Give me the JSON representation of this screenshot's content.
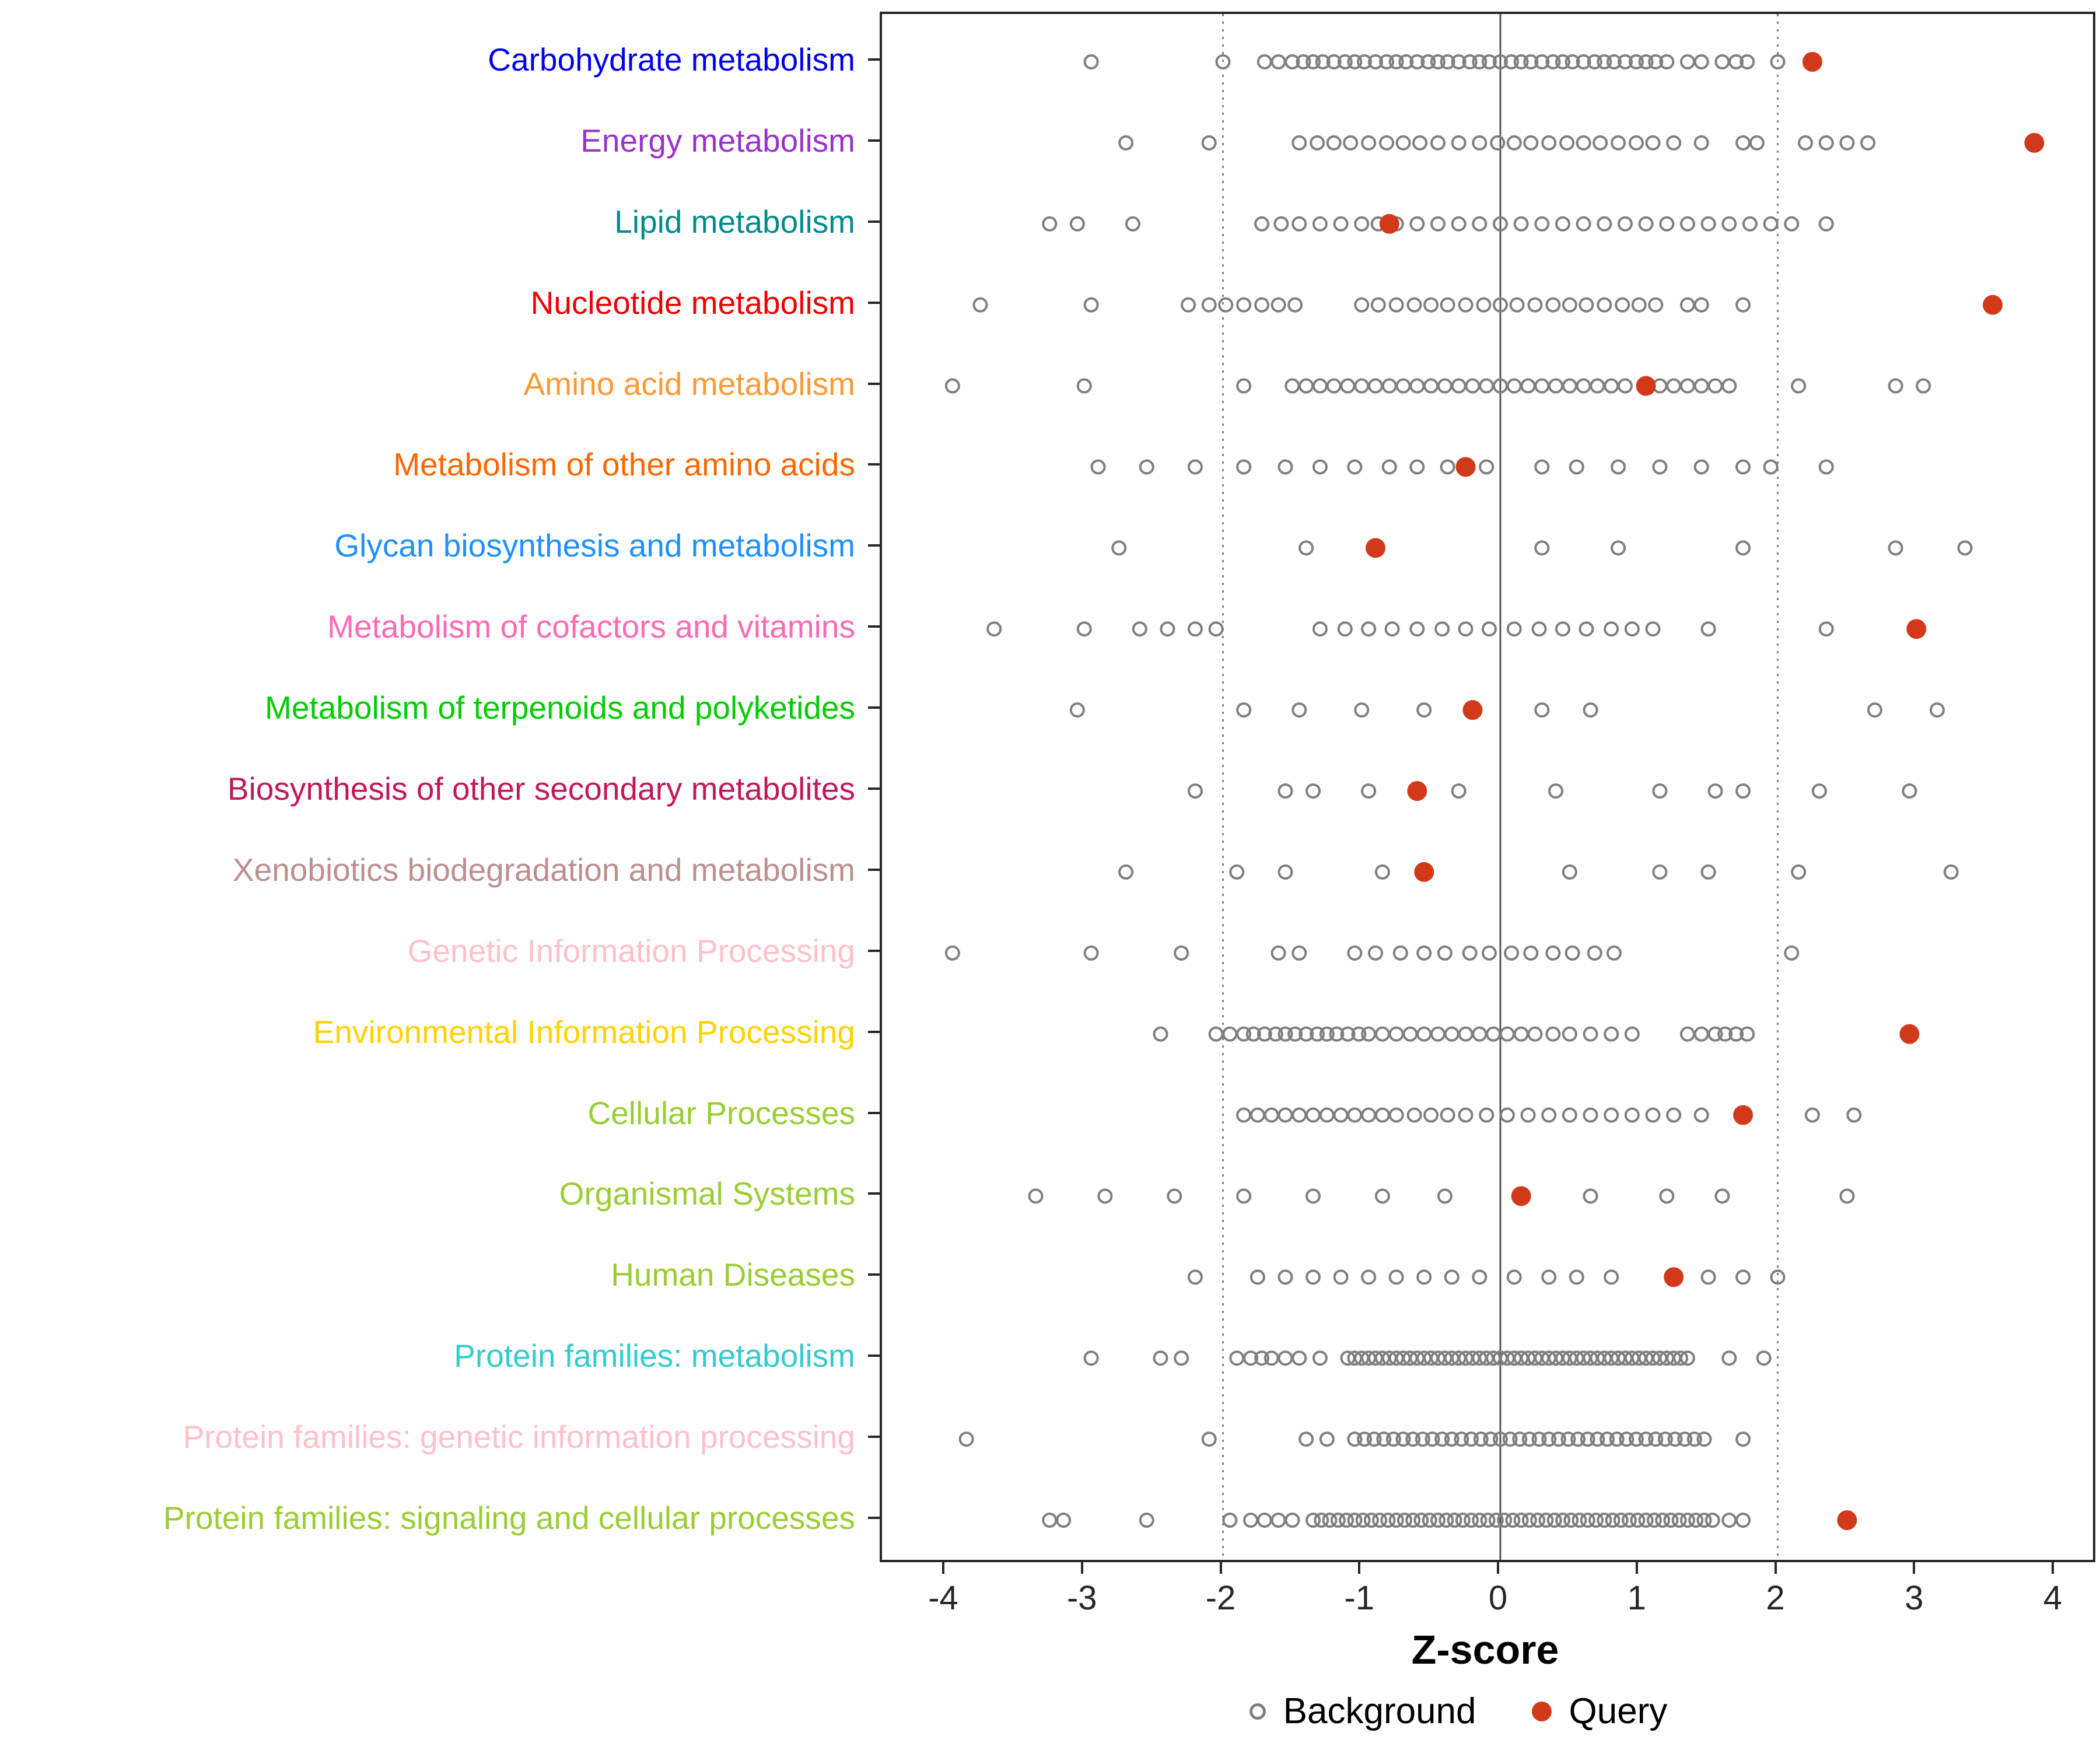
{
  "figure": {
    "colors": {
      "background_point": "#7F7F7F",
      "query_point": "#D2391B",
      "axis_text": "#262626",
      "panel_border": "#262626",
      "ref_line_solid": "#555555",
      "ref_line_dotted": "#808080"
    }
  },
  "chart_data": {
    "type": "scatter",
    "title": "",
    "xlabel": "Z-score",
    "ylabel": "",
    "x_min": -4,
    "x_max": 4,
    "x_ticks": [
      -4,
      -3,
      -2,
      -1,
      0,
      1,
      2,
      3,
      4
    ],
    "reference_lines": {
      "solid": [
        0
      ],
      "dotted": [
        -2,
        2
      ]
    },
    "legend_background": "Background",
    "legend_query": "Query",
    "rows": [
      {
        "label": "Carbohydrate metabolism",
        "color": "#0000EE",
        "query": 2.25,
        "background": [
          -2.95,
          -2.0,
          -1.7,
          -1.6,
          -1.5,
          -1.42,
          -1.35,
          -1.28,
          -1.2,
          -1.12,
          -1.05,
          -0.98,
          -0.9,
          -0.82,
          -0.75,
          -0.68,
          -0.6,
          -0.52,
          -0.45,
          -0.38,
          -0.3,
          -0.22,
          -0.15,
          -0.08,
          0.0,
          0.08,
          0.15,
          0.22,
          0.3,
          0.38,
          0.45,
          0.52,
          0.6,
          0.68,
          0.75,
          0.82,
          0.9,
          0.98,
          1.05,
          1.12,
          1.2,
          1.35,
          1.45,
          1.6,
          1.7,
          1.78,
          2.0
        ]
      },
      {
        "label": "Energy metabolism",
        "color": "#9932CC",
        "query": 3.85,
        "background": [
          -2.7,
          -2.1,
          -1.45,
          -1.32,
          -1.2,
          -1.08,
          -0.95,
          -0.82,
          -0.7,
          -0.58,
          -0.45,
          -0.3,
          -0.15,
          -0.02,
          0.1,
          0.22,
          0.35,
          0.48,
          0.6,
          0.72,
          0.85,
          0.98,
          1.1,
          1.25,
          1.45,
          1.75,
          1.85,
          2.2,
          2.35,
          2.5,
          2.65
        ]
      },
      {
        "label": "Lipid metabolism",
        "color": "#008B8B",
        "query": -0.8,
        "background": [
          -3.25,
          -3.05,
          -2.65,
          -1.72,
          -1.58,
          -1.45,
          -1.3,
          -1.15,
          -1.0,
          -0.88,
          -0.75,
          -0.6,
          -0.45,
          -0.3,
          -0.15,
          0.0,
          0.15,
          0.3,
          0.45,
          0.6,
          0.75,
          0.9,
          1.05,
          1.2,
          1.35,
          1.5,
          1.65,
          1.8,
          1.95,
          2.1,
          2.35
        ]
      },
      {
        "label": "Nucleotide metabolism",
        "color": "#EE0000",
        "query": 3.55,
        "background": [
          -3.75,
          -2.95,
          -2.25,
          -2.1,
          -1.98,
          -1.85,
          -1.72,
          -1.6,
          -1.48,
          -1.0,
          -0.88,
          -0.75,
          -0.62,
          -0.5,
          -0.38,
          -0.25,
          -0.12,
          0.0,
          0.12,
          0.25,
          0.38,
          0.5,
          0.62,
          0.75,
          0.88,
          1.0,
          1.12,
          1.35,
          1.45,
          1.75
        ]
      },
      {
        "label": "Amino acid metabolism",
        "color": "#FF9933",
        "query": 1.05,
        "background": [
          -3.95,
          -3.0,
          -1.85,
          -1.5,
          -1.4,
          -1.3,
          -1.2,
          -1.1,
          -1.0,
          -0.9,
          -0.8,
          -0.7,
          -0.6,
          -0.5,
          -0.4,
          -0.3,
          -0.2,
          -0.1,
          0.0,
          0.1,
          0.2,
          0.3,
          0.4,
          0.5,
          0.6,
          0.7,
          0.8,
          0.9,
          1.15,
          1.25,
          1.35,
          1.45,
          1.55,
          1.65,
          2.15,
          2.85,
          3.05
        ]
      },
      {
        "label": "Metabolism of other amino acids",
        "color": "#FF6600",
        "query": -0.25,
        "background": [
          -2.9,
          -2.55,
          -2.2,
          -1.85,
          -1.55,
          -1.3,
          -1.05,
          -0.8,
          -0.6,
          -0.38,
          -0.1,
          0.3,
          0.55,
          0.85,
          1.15,
          1.45,
          1.75,
          1.95,
          2.35
        ]
      },
      {
        "label": "Glycan biosynthesis and metabolism",
        "color": "#1E90FF",
        "query": -0.9,
        "background": [
          -2.75,
          -1.4,
          0.3,
          0.85,
          1.75,
          2.85,
          3.35
        ]
      },
      {
        "label": "Metabolism of cofactors and vitamins",
        "color": "#FF69B4",
        "query": 3.0,
        "background": [
          -3.65,
          -3.0,
          -2.6,
          -2.4,
          -2.2,
          -2.05,
          -1.3,
          -1.12,
          -0.95,
          -0.78,
          -0.6,
          -0.42,
          -0.25,
          -0.08,
          0.1,
          0.28,
          0.45,
          0.62,
          0.8,
          0.95,
          1.1,
          1.5,
          2.35
        ]
      },
      {
        "label": "Metabolism of terpenoids and polyketides",
        "color": "#00CD00",
        "query": -0.2,
        "background": [
          -3.05,
          -1.85,
          -1.45,
          -1.0,
          -0.55,
          0.3,
          0.65,
          2.7,
          3.15
        ]
      },
      {
        "label": "Biosynthesis of other secondary metabolites",
        "color": "#C2185B",
        "query": -0.6,
        "background": [
          -2.2,
          -1.55,
          -1.35,
          -0.95,
          -0.3,
          0.4,
          1.15,
          1.55,
          1.75,
          2.3,
          2.95
        ]
      },
      {
        "label": "Xenobiotics biodegradation and metabolism",
        "color": "#BC8F8F",
        "query": -0.55,
        "background": [
          -2.7,
          -1.9,
          -1.55,
          -0.85,
          0.5,
          1.15,
          1.5,
          2.15,
          3.25
        ]
      },
      {
        "label": "Genetic Information Processing",
        "color": "#FFC0CB",
        "query": null,
        "background": [
          -3.95,
          -2.95,
          -2.3,
          -1.6,
          -1.45,
          -1.05,
          -0.9,
          -0.72,
          -0.55,
          -0.4,
          -0.22,
          -0.08,
          0.08,
          0.22,
          0.38,
          0.52,
          0.68,
          0.82,
          2.1
        ]
      },
      {
        "label": "Environmental Information Processing",
        "color": "#FFD200",
        "query": 2.95,
        "background": [
          -2.45,
          -2.05,
          -1.95,
          -1.85,
          -1.78,
          -1.7,
          -1.62,
          -1.55,
          -1.48,
          -1.4,
          -1.32,
          -1.25,
          -1.18,
          -1.1,
          -1.02,
          -0.95,
          -0.85,
          -0.75,
          -0.65,
          -0.55,
          -0.45,
          -0.35,
          -0.25,
          -0.15,
          -0.05,
          0.05,
          0.15,
          0.25,
          0.38,
          0.5,
          0.65,
          0.8,
          0.95,
          1.35,
          1.45,
          1.55,
          1.62,
          1.7,
          1.78
        ]
      },
      {
        "label": "Cellular Processes",
        "color": "#9ACD32",
        "query": 1.75,
        "background": [
          -1.85,
          -1.75,
          -1.65,
          -1.55,
          -1.45,
          -1.35,
          -1.25,
          -1.15,
          -1.05,
          -0.95,
          -0.85,
          -0.75,
          -0.62,
          -0.5,
          -0.38,
          -0.25,
          -0.1,
          0.05,
          0.2,
          0.35,
          0.5,
          0.65,
          0.8,
          0.95,
          1.1,
          1.25,
          1.45,
          2.25,
          2.55
        ]
      },
      {
        "label": "Organismal Systems",
        "color": "#9ACD32",
        "query": 0.15,
        "background": [
          -3.35,
          -2.85,
          -2.35,
          -1.85,
          -1.35,
          -0.85,
          -0.4,
          0.65,
          1.2,
          1.6,
          2.5
        ]
      },
      {
        "label": "Human Diseases",
        "color": "#9ACD32",
        "query": 1.25,
        "background": [
          -2.2,
          -1.75,
          -1.55,
          -1.35,
          -1.15,
          -0.95,
          -0.75,
          -0.55,
          -0.35,
          -0.15,
          0.1,
          0.35,
          0.55,
          0.8,
          1.5,
          1.75,
          2.0
        ]
      },
      {
        "label": "Protein families: metabolism",
        "color": "#33CCCC",
        "query": null,
        "background": [
          -2.95,
          -2.45,
          -2.3,
          -1.9,
          -1.8,
          -1.72,
          -1.65,
          -1.55,
          -1.45,
          -1.3,
          -1.1,
          -1.05,
          -1.0,
          -0.95,
          -0.9,
          -0.85,
          -0.8,
          -0.75,
          -0.7,
          -0.65,
          -0.6,
          -0.55,
          -0.5,
          -0.45,
          -0.4,
          -0.35,
          -0.3,
          -0.25,
          -0.2,
          -0.15,
          -0.1,
          -0.05,
          0.0,
          0.05,
          0.1,
          0.15,
          0.2,
          0.25,
          0.3,
          0.35,
          0.4,
          0.45,
          0.5,
          0.55,
          0.6,
          0.65,
          0.7,
          0.75,
          0.8,
          0.85,
          0.9,
          0.95,
          1.0,
          1.05,
          1.1,
          1.15,
          1.2,
          1.25,
          1.3,
          1.35,
          1.65,
          1.9
        ]
      },
      {
        "label": "Protein families: genetic information processing",
        "color": "#FFC0CB",
        "query": null,
        "background": [
          -3.85,
          -2.1,
          -1.4,
          -1.25,
          -1.05,
          -0.98,
          -0.91,
          -0.84,
          -0.77,
          -0.7,
          -0.63,
          -0.56,
          -0.49,
          -0.42,
          -0.35,
          -0.28,
          -0.21,
          -0.14,
          -0.07,
          0.0,
          0.07,
          0.14,
          0.21,
          0.28,
          0.35,
          0.42,
          0.49,
          0.56,
          0.63,
          0.7,
          0.77,
          0.84,
          0.91,
          0.98,
          1.05,
          1.12,
          1.19,
          1.26,
          1.33,
          1.4,
          1.47,
          1.75
        ]
      },
      {
        "label": "Protein families: signaling and cellular processes",
        "color": "#9ACD32",
        "query": 2.5,
        "background": [
          -3.25,
          -3.15,
          -2.55,
          -1.95,
          -1.8,
          -1.7,
          -1.6,
          -1.5,
          -1.35,
          -1.29,
          -1.23,
          -1.17,
          -1.11,
          -1.05,
          -0.99,
          -0.93,
          -0.87,
          -0.81,
          -0.75,
          -0.69,
          -0.63,
          -0.57,
          -0.51,
          -0.45,
          -0.39,
          -0.33,
          -0.27,
          -0.21,
          -0.15,
          -0.09,
          -0.03,
          0.03,
          0.09,
          0.15,
          0.21,
          0.27,
          0.33,
          0.39,
          0.45,
          0.51,
          0.57,
          0.63,
          0.69,
          0.75,
          0.81,
          0.87,
          0.93,
          0.99,
          1.05,
          1.11,
          1.17,
          1.23,
          1.29,
          1.35,
          1.41,
          1.47,
          1.53,
          1.65,
          1.75
        ]
      }
    ]
  }
}
